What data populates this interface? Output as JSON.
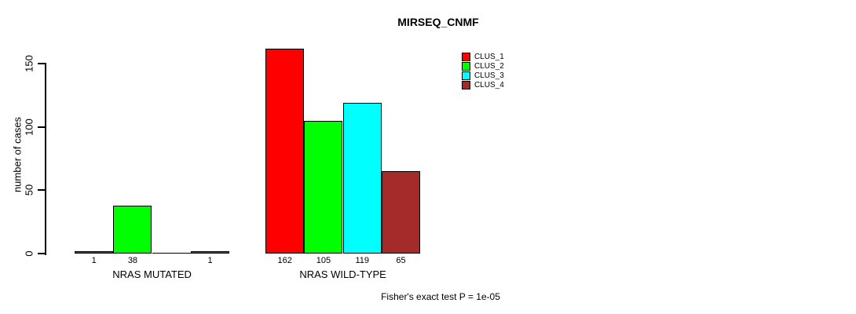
{
  "chart_data": {
    "type": "bar",
    "title": "MIRSEQ_CNMF",
    "xlabel": "",
    "ylabel": "number of cases",
    "ylim": [
      0,
      165
    ],
    "yticks": [
      0,
      50,
      100,
      150
    ],
    "grid": false,
    "legend_position": "top-right",
    "categories": [
      "NRAS MUTATED",
      "NRAS WILD-TYPE"
    ],
    "series": [
      {
        "name": "CLUS_1",
        "color": "#ff0000",
        "values": [
          1,
          162
        ]
      },
      {
        "name": "CLUS_2",
        "color": "#00ff00",
        "values": [
          38,
          105
        ]
      },
      {
        "name": "CLUS_3",
        "color": "#00ffff",
        "values": [
          0,
          119
        ]
      },
      {
        "name": "CLUS_4",
        "color": "#a52a2a",
        "values": [
          1,
          65
        ]
      }
    ],
    "value_labels": [
      [
        "1",
        "38",
        "",
        "1"
      ],
      [
        "162",
        "105",
        "119",
        "65"
      ]
    ],
    "annotation": "Fisher's exact test P = 1e-05"
  }
}
